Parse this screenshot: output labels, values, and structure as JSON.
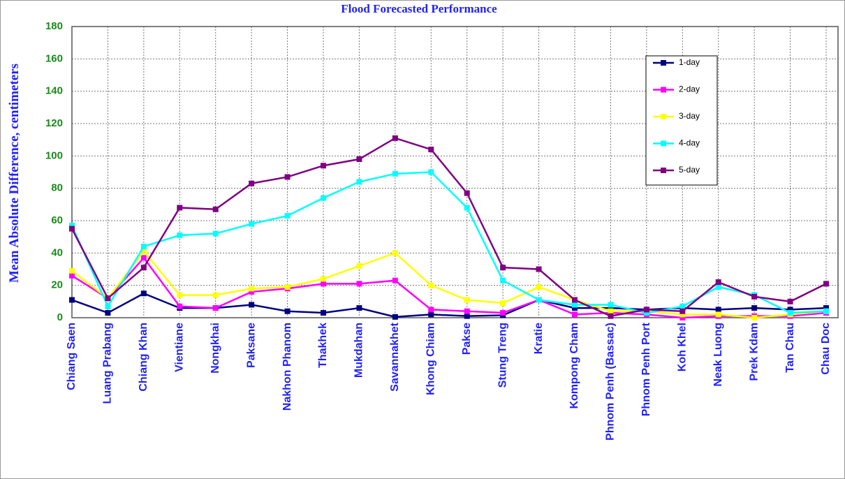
{
  "chart_data": {
    "type": "line",
    "title": "Flood Forecasted Performance",
    "y_label": "Mean Absolute Difference, centimeters",
    "categories": [
      "Chiang Saen",
      "Luang Prabang",
      "Chiang Khan",
      "Vientiane",
      "Nongkhai",
      "Paksane",
      "Nakhon Phanom",
      "Thakhek",
      "Mukdahan",
      "Savannakhet",
      "Khong Chiam",
      "Pakse",
      "Stung Treng",
      "Kratie",
      "Kompong Cham",
      "Phnom Penh (Bassac)",
      "Phnom Penh Port",
      "Koh Khel",
      "Neak Luong",
      "Prek Kdam",
      "Tan Chau",
      "Chau Doc"
    ],
    "series": [
      {
        "name": "1-day",
        "color": "#000080",
        "values": [
          11,
          3,
          15,
          6,
          6,
          8,
          4,
          3,
          6,
          0.5,
          2,
          1,
          1.5,
          11,
          6,
          6,
          5,
          6,
          5,
          6,
          5,
          6
        ]
      },
      {
        "name": "2-day",
        "color": "#ff00ff",
        "values": [
          26,
          12,
          37,
          7,
          6,
          16,
          18,
          21,
          21,
          23,
          5,
          4,
          3,
          11,
          2,
          3,
          2,
          0,
          1,
          1,
          1,
          3
        ]
      },
      {
        "name": "3-day",
        "color": "#ffff00",
        "values": [
          29,
          12,
          41,
          14,
          14,
          18,
          19,
          24,
          32,
          40,
          20,
          11,
          9,
          19,
          11,
          4,
          4,
          2,
          2,
          0,
          2,
          4
        ]
      },
      {
        "name": "4-day",
        "color": "#00ffff",
        "values": [
          57,
          7,
          44,
          51,
          52,
          58,
          63,
          74,
          84,
          89,
          90,
          68,
          23,
          11,
          8,
          8,
          3,
          7,
          19,
          14,
          3,
          4
        ]
      },
      {
        "name": "5-day",
        "color": "#800080",
        "values": [
          55,
          12,
          31,
          68,
          67,
          83,
          87,
          94,
          98,
          111,
          104,
          77,
          31,
          30,
          11,
          1,
          5,
          4,
          22,
          13,
          10,
          21
        ]
      }
    ],
    "ylim": [
      0,
      180
    ],
    "yticks": [
      0,
      20,
      40,
      60,
      80,
      100,
      120,
      140,
      160,
      180
    ],
    "grid": true
  }
}
